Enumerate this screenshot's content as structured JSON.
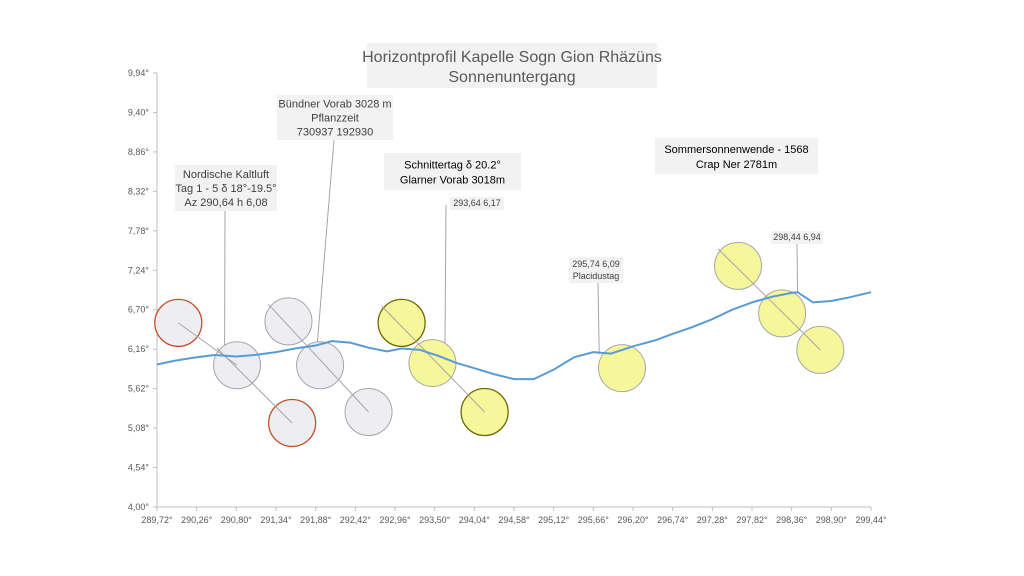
{
  "chart_data": {
    "type": "line",
    "title": "Horizontprofil Kapelle Sogn Gion Rhäzüns",
    "subtitle": "Sonnenuntergang",
    "xlabel": "",
    "ylabel": "",
    "xlim": [
      289.72,
      299.44
    ],
    "ylim": [
      4.0,
      9.94
    ],
    "x_ticks": [
      "289,72°",
      "290,26°",
      "290,80°",
      "291,34°",
      "291,88°",
      "292,42°",
      "292,96°",
      "293,50°",
      "294,04°",
      "294,58°",
      "295,12°",
      "295,66°",
      "296,20°",
      "296,74°",
      "297,28°",
      "297,82°",
      "298,36°",
      "298,90°",
      "299,44°"
    ],
    "y_ticks": [
      "4,00°",
      "4,54°",
      "5,08°",
      "5,62°",
      "6,16°",
      "6,70°",
      "7,24°",
      "7,78°",
      "8,32°",
      "8,86°",
      "9,40°",
      "9,94°"
    ],
    "grid": false,
    "colors": {
      "horizon_line": "#5b9bd5",
      "sun_grey": "#ededf2",
      "sun_yellow": "#f6f69a",
      "stroke_red": "#c0502a",
      "stroke_olive": "#6b6b00"
    },
    "series": [
      {
        "x": [
          289.72,
          289.95,
          290.2,
          290.5,
          290.8,
          291.05,
          291.34,
          291.6,
          291.88,
          292.1,
          292.35,
          292.6,
          292.85,
          293.05,
          293.3,
          293.55,
          293.8,
          294.04,
          294.3,
          294.58,
          294.85,
          295.12,
          295.4,
          295.66,
          295.9,
          296.2,
          296.5,
          296.74,
          297.0,
          297.28,
          297.55,
          297.82,
          298.1,
          298.36,
          298.44,
          298.65,
          298.9,
          299.15,
          299.44
        ],
        "y": [
          5.95,
          6.0,
          6.04,
          6.08,
          6.06,
          6.08,
          6.12,
          6.17,
          6.21,
          6.27,
          6.25,
          6.18,
          6.13,
          6.17,
          6.15,
          6.07,
          5.97,
          5.9,
          5.82,
          5.75,
          5.75,
          5.88,
          6.05,
          6.12,
          6.1,
          6.2,
          6.28,
          6.37,
          6.46,
          6.57,
          6.7,
          6.8,
          6.88,
          6.93,
          6.94,
          6.8,
          6.82,
          6.87,
          6.94
        ]
      }
    ],
    "suns": [
      {
        "x": 290.01,
        "y": 6.52,
        "color": "grey",
        "stroke": "red"
      },
      {
        "x": 290.81,
        "y": 5.94,
        "color": "grey",
        "stroke": "grey"
      },
      {
        "x": 291.51,
        "y": 6.54,
        "color": "grey",
        "stroke": "grey"
      },
      {
        "x": 291.56,
        "y": 5.15,
        "color": "grey",
        "stroke": "red"
      },
      {
        "x": 291.94,
        "y": 5.94,
        "color": "grey",
        "stroke": "grey"
      },
      {
        "x": 292.6,
        "y": 5.3,
        "color": "grey",
        "stroke": "grey"
      },
      {
        "x": 293.05,
        "y": 6.52,
        "color": "yellow",
        "stroke": "olive"
      },
      {
        "x": 293.47,
        "y": 5.97,
        "color": "yellow",
        "stroke": "grey"
      },
      {
        "x": 294.18,
        "y": 5.3,
        "color": "yellow",
        "stroke": "olive"
      },
      {
        "x": 296.05,
        "y": 5.9,
        "color": "yellow",
        "stroke": "grey"
      },
      {
        "x": 297.63,
        "y": 7.3,
        "color": "yellow",
        "stroke": "grey"
      },
      {
        "x": 298.23,
        "y": 6.65,
        "color": "yellow",
        "stroke": "grey"
      },
      {
        "x": 298.75,
        "y": 6.15,
        "color": "yellow",
        "stroke": "grey"
      }
    ],
    "annotations": [
      {
        "lines": [
          "Nordische Kaltluft",
          "Tag 1 - 5 δ 18°-19.5°",
          "Az 290,64 h 6,08"
        ],
        "style": "box"
      },
      {
        "lines": [
          "Bündner Vorab 3028 m",
          "Pflanzzeit",
          "730937 192930"
        ],
        "style": "box"
      },
      {
        "lines": [
          "Schnittertag    δ 20.2°",
          "Glarner Vorab 3018m"
        ],
        "style": "box-dark"
      },
      {
        "lines": [
          "293,64 6,17"
        ],
        "style": "small"
      },
      {
        "lines": [
          "295,74 6,09",
          "Placidustag"
        ],
        "style": "small"
      },
      {
        "lines": [
          "Sommersonnenwende - 1568",
          "Crap Ner  2781m"
        ],
        "style": "box-dark"
      },
      {
        "lines": [
          "298,44 6,94"
        ],
        "style": "small"
      }
    ]
  }
}
